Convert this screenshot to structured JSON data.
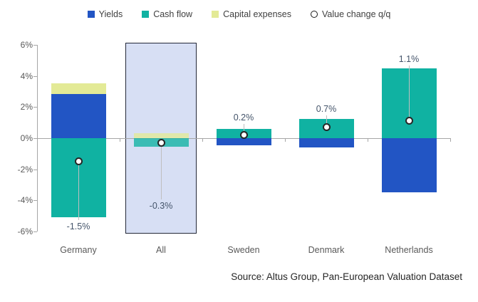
{
  "chart": {
    "legend": [
      {
        "label": "Yields",
        "marker": "square",
        "color": "#2255C4"
      },
      {
        "label": "Cash flow",
        "marker": "square",
        "color": "#10B2A2"
      },
      {
        "label": "Capital expenses",
        "marker": "square",
        "color": "#E3EA96"
      },
      {
        "label": "Value change q/q",
        "marker": "circle",
        "color": "#FFFFFF"
      }
    ],
    "source_note": "Source:  Altus Group, Pan-European Valuation Dataset"
  },
  "chart_data": {
    "type": "bar",
    "stacked": true,
    "categories": [
      "Germany",
      "All",
      "Sweden",
      "Denmark",
      "Netherlands"
    ],
    "series": [
      {
        "name": "Yields",
        "color": "#2255C4",
        "values": [
          2.85,
          0,
          -0.45,
          -0.6,
          -3.5
        ]
      },
      {
        "name": "Cash flow",
        "color": "#10B2A2",
        "values": [
          -5.1,
          -0.55,
          0.6,
          1.25,
          4.5
        ]
      },
      {
        "name": "Capital expenses",
        "color": "#E3EA96",
        "values": [
          0.7,
          0.3,
          0,
          0,
          0
        ]
      }
    ],
    "markers": {
      "name": "Value change q/q",
      "values": [
        -1.5,
        -0.3,
        0.2,
        0.7,
        1.1
      ],
      "labels": [
        "-1.5%",
        "-0.3%",
        "0.2%",
        "0.7%",
        "1.1%"
      ]
    },
    "ylim": [
      -6,
      6
    ],
    "yticks": [
      6,
      4,
      2,
      0,
      -2,
      -4,
      -6
    ],
    "ytick_labels": [
      "6%",
      "4%",
      "2%",
      "0%",
      "-2%",
      "-4%",
      "-6%"
    ],
    "grid": false,
    "legend_position": "top",
    "highlighted_category": "All",
    "highlight_box": {
      "fill": "#D7DFF4",
      "border": "#232838"
    },
    "axis_color": "#A6A6A6"
  }
}
